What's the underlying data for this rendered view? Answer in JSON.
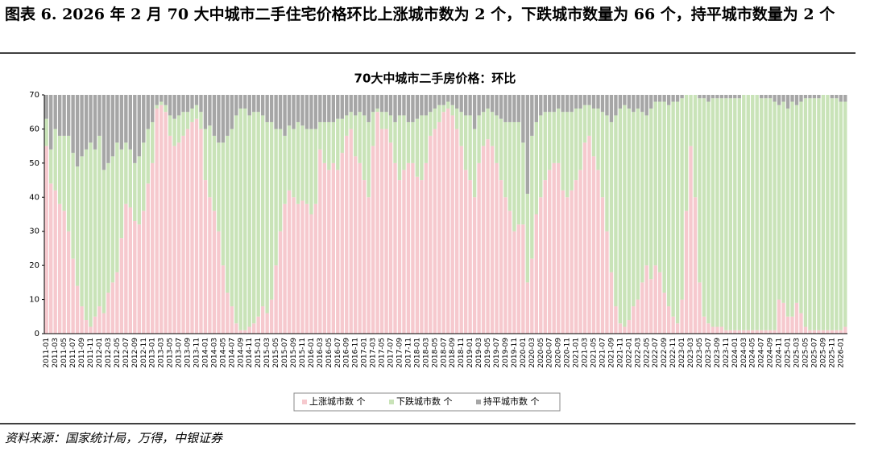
{
  "header": {
    "title": "图表 6. 2026 年 2 月 70 大中城市二手住宅价格环比上涨城市数为 2 个，下跌城市数量为 66 个，持平城市数量为 2 个"
  },
  "chart_data": {
    "type": "stacked_bar",
    "title": "70大中城市二手房价格：环比",
    "categories": [
      "2011-01",
      null,
      "2011-03",
      null,
      "2011-05",
      null,
      "2011-07",
      null,
      "2011-09",
      null,
      "2011-11",
      null,
      "2012-01",
      null,
      "2012-03",
      null,
      "2012-05",
      null,
      "2012-07",
      null,
      "2012-09",
      null,
      "2012-11",
      null,
      "2013-01",
      null,
      "2013-03",
      null,
      "2013-05",
      null,
      "2013-07",
      null,
      "2013-09",
      null,
      "2013-11",
      null,
      "2014-01",
      null,
      "2014-03",
      null,
      "2014-05",
      null,
      "2014-07",
      null,
      "2014-09",
      null,
      "2014-11",
      null,
      "2015-01",
      null,
      "2015-03",
      null,
      "2015-05",
      null,
      "2015-07",
      null,
      "2015-09",
      null,
      "2015-11",
      null,
      "2016-01",
      null,
      "2016-03",
      null,
      "2016-05",
      null,
      "2016-07",
      null,
      "2016-09",
      null,
      "2016-11",
      null,
      "2017-01",
      null,
      "2017-03",
      null,
      "2017-05",
      null,
      "2017-07",
      null,
      "2017-09",
      null,
      "2017-11",
      null,
      "2018-01",
      null,
      "2018-03",
      null,
      "2018-05",
      null,
      "2018-07",
      null,
      "2018-09",
      null,
      "2018-11",
      null,
      "2019-01",
      null,
      "2019-03",
      null,
      "2019-05",
      null,
      "2019-07",
      null,
      "2019-09",
      null,
      "2019-11",
      null,
      "2020-01",
      null,
      "2020-03",
      null,
      "2020-05",
      null,
      "2020-07",
      null,
      "2020-09",
      null,
      "2020-11",
      null,
      "2021-01",
      null,
      "2021-03",
      null,
      "2021-05",
      null,
      "2021-07",
      null,
      "2021-09",
      null,
      "2021-11",
      null,
      "2022-01",
      null,
      "2022-03",
      null,
      "2022-05",
      null,
      "2022-07",
      null,
      "2022-09",
      null,
      "2022-11",
      null,
      "2023-01",
      null,
      "2023-03",
      null,
      "2023-05",
      null,
      "2023-07",
      null,
      "2023-09",
      null,
      "2023-11",
      null,
      "2024-01",
      null,
      "2024-03",
      null,
      "2024-05",
      null,
      "2024-07",
      null,
      "2024-09",
      null,
      "2024-11",
      null,
      "2025-01",
      null,
      "2025-03",
      null,
      "2025-05",
      null,
      "2025-07",
      null,
      "2025-09",
      null,
      "2025-11",
      null,
      "2026-01",
      null
    ],
    "series": [
      {
        "name": "上涨城市数 个",
        "color": "#f6c9ce",
        "values": [
          55,
          44,
          42,
          38,
          36,
          30,
          22,
          14,
          8,
          4,
          2,
          5,
          8,
          6,
          12,
          15,
          18,
          28,
          38,
          37,
          33,
          32,
          36,
          44,
          50,
          66,
          67,
          65,
          58,
          55,
          56,
          58,
          60,
          62,
          63,
          60,
          45,
          40,
          36,
          30,
          20,
          12,
          8,
          3,
          1,
          1,
          2,
          3,
          5,
          8,
          6,
          10,
          20,
          30,
          38,
          42,
          40,
          38,
          39,
          38,
          35,
          38,
          54,
          50,
          48,
          50,
          48,
          53,
          58,
          60,
          52,
          50,
          45,
          40,
          55,
          65,
          60,
          60,
          56,
          50,
          45,
          48,
          50,
          50,
          46,
          45,
          50,
          58,
          60,
          62,
          65,
          66,
          64,
          60,
          55,
          48,
          45,
          40,
          50,
          55,
          57,
          55,
          50,
          45,
          40,
          36,
          30,
          32,
          32,
          15,
          22,
          35,
          40,
          45,
          48,
          50,
          50,
          42,
          40,
          42,
          45,
          48,
          56,
          58,
          52,
          48,
          40,
          30,
          18,
          8,
          3,
          2,
          4,
          8,
          10,
          15,
          20,
          16,
          20,
          18,
          12,
          8,
          5,
          3,
          10,
          36,
          55,
          40,
          15,
          5,
          3,
          2,
          2,
          2,
          1,
          1,
          1,
          1,
          1,
          1,
          1,
          1,
          1,
          1,
          1,
          1,
          10,
          9,
          5,
          5,
          9,
          6,
          2,
          1,
          1,
          1,
          1,
          1,
          1,
          1,
          1,
          2
        ]
      },
      {
        "name": "下跌城市数 个",
        "color": "#c9e3b8",
        "values": [
          8,
          10,
          18,
          20,
          22,
          28,
          31,
          35,
          44,
          50,
          54,
          49,
          50,
          42,
          38,
          37,
          38,
          26,
          18,
          17,
          17,
          20,
          20,
          16,
          12,
          1,
          1,
          2,
          6,
          8,
          8,
          7,
          5,
          4,
          4,
          5,
          15,
          21,
          22,
          26,
          36,
          46,
          52,
          61,
          65,
          65,
          62,
          62,
          60,
          56,
          56,
          52,
          40,
          30,
          20,
          19,
          20,
          24,
          22,
          22,
          25,
          22,
          8,
          12,
          14,
          12,
          15,
          10,
          6,
          5,
          12,
          15,
          19,
          22,
          10,
          1,
          5,
          5,
          8,
          12,
          19,
          16,
          12,
          12,
          17,
          19,
          14,
          7,
          6,
          5,
          2,
          2,
          3,
          6,
          10,
          16,
          19,
          20,
          14,
          10,
          9,
          10,
          14,
          18,
          22,
          26,
          32,
          30,
          24,
          26,
          36,
          27,
          24,
          20,
          17,
          15,
          16,
          23,
          25,
          23,
          21,
          18,
          11,
          9,
          14,
          18,
          25,
          34,
          44,
          56,
          63,
          65,
          62,
          57,
          56,
          50,
          44,
          50,
          48,
          50,
          56,
          59,
          63,
          65,
          59,
          34,
          15,
          30,
          54,
          64,
          65,
          67,
          67,
          67,
          68,
          68,
          68,
          68,
          69,
          69,
          69,
          69,
          68,
          68,
          68,
          67,
          57,
          59,
          61,
          63,
          58,
          62,
          67,
          68,
          68,
          68,
          69,
          69,
          68,
          68,
          67,
          66
        ]
      },
      {
        "name": "持平城市数 个",
        "color": "#a6a6a6",
        "values": [
          7,
          16,
          10,
          12,
          12,
          12,
          17,
          21,
          18,
          16,
          14,
          16,
          12,
          22,
          20,
          18,
          14,
          16,
          14,
          16,
          20,
          18,
          14,
          10,
          8,
          3,
          2,
          3,
          6,
          7,
          6,
          5,
          5,
          4,
          3,
          5,
          10,
          9,
          12,
          14,
          14,
          12,
          10,
          6,
          4,
          4,
          6,
          5,
          5,
          6,
          8,
          8,
          10,
          10,
          12,
          9,
          10,
          8,
          9,
          10,
          10,
          10,
          8,
          8,
          8,
          8,
          7,
          7,
          6,
          5,
          6,
          5,
          6,
          8,
          5,
          4,
          5,
          5,
          6,
          8,
          6,
          6,
          8,
          8,
          7,
          6,
          6,
          5,
          4,
          3,
          3,
          2,
          3,
          4,
          5,
          6,
          6,
          10,
          6,
          5,
          4,
          5,
          6,
          7,
          8,
          8,
          8,
          8,
          14,
          29,
          12,
          8,
          6,
          5,
          5,
          5,
          4,
          5,
          5,
          5,
          4,
          4,
          3,
          3,
          4,
          4,
          5,
          6,
          8,
          6,
          4,
          3,
          4,
          5,
          4,
          5,
          6,
          4,
          2,
          2,
          2,
          3,
          2,
          2,
          1,
          0,
          0,
          0,
          1,
          1,
          2,
          1,
          1,
          1,
          1,
          1,
          1,
          1,
          0,
          0,
          0,
          0,
          1,
          1,
          1,
          2,
          3,
          2,
          4,
          2,
          3,
          2,
          1,
          1,
          1,
          1,
          0,
          0,
          1,
          1,
          2,
          2
        ]
      }
    ],
    "ylim": [
      0,
      70
    ],
    "yticks": [
      0,
      10,
      20,
      30,
      40,
      50,
      60,
      70
    ],
    "legend": "bottom"
  },
  "footer": {
    "source": "资料来源：国家统计局，万得，中银证券"
  }
}
